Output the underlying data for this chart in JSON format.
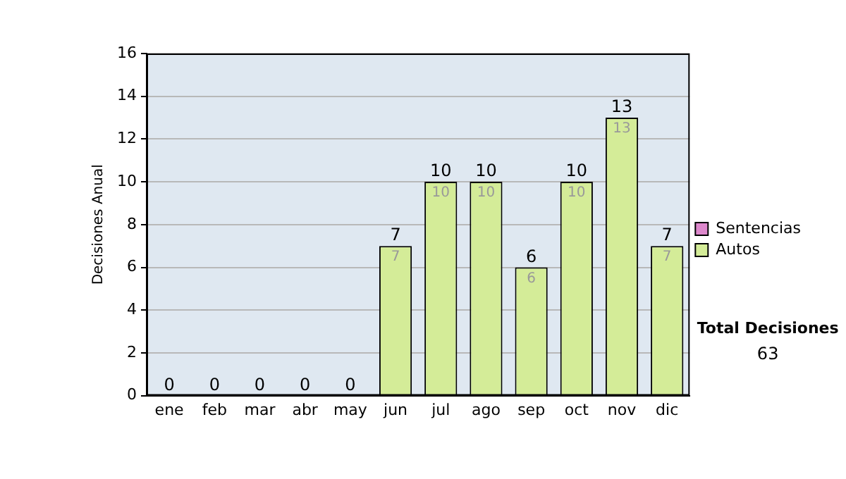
{
  "chart_data": {
    "type": "bar",
    "stacked": true,
    "ylabel": "Decisiones Anual",
    "categories": [
      "ene",
      "feb",
      "mar",
      "abr",
      "may",
      "jun",
      "jul",
      "ago",
      "sep",
      "oct",
      "nov",
      "dic"
    ],
    "series": [
      {
        "name": "Sentencias",
        "color": "#dd88cc",
        "values": [
          0,
          0,
          0,
          0,
          0,
          0,
          0,
          0,
          0,
          0,
          0,
          0
        ]
      },
      {
        "name": "Autos",
        "color": "#d4ec98",
        "values": [
          0,
          0,
          0,
          0,
          0,
          7,
          10,
          10,
          6,
          10,
          13,
          7
        ],
        "value_labels": [
          null,
          null,
          null,
          null,
          null,
          "7",
          "10",
          "10",
          "6",
          "10",
          "13",
          "7"
        ]
      }
    ],
    "totals": [
      "0",
      "0",
      "0",
      "0",
      "0",
      "7",
      "10",
      "10",
      "6",
      "10",
      "13",
      "7"
    ],
    "ylim": [
      0,
      16
    ],
    "yticks": [
      0,
      2,
      4,
      6,
      8,
      10,
      12,
      14,
      16
    ],
    "grid": "y",
    "legend": "right",
    "annotations": [
      "Total Decisiones",
      "63"
    ]
  }
}
